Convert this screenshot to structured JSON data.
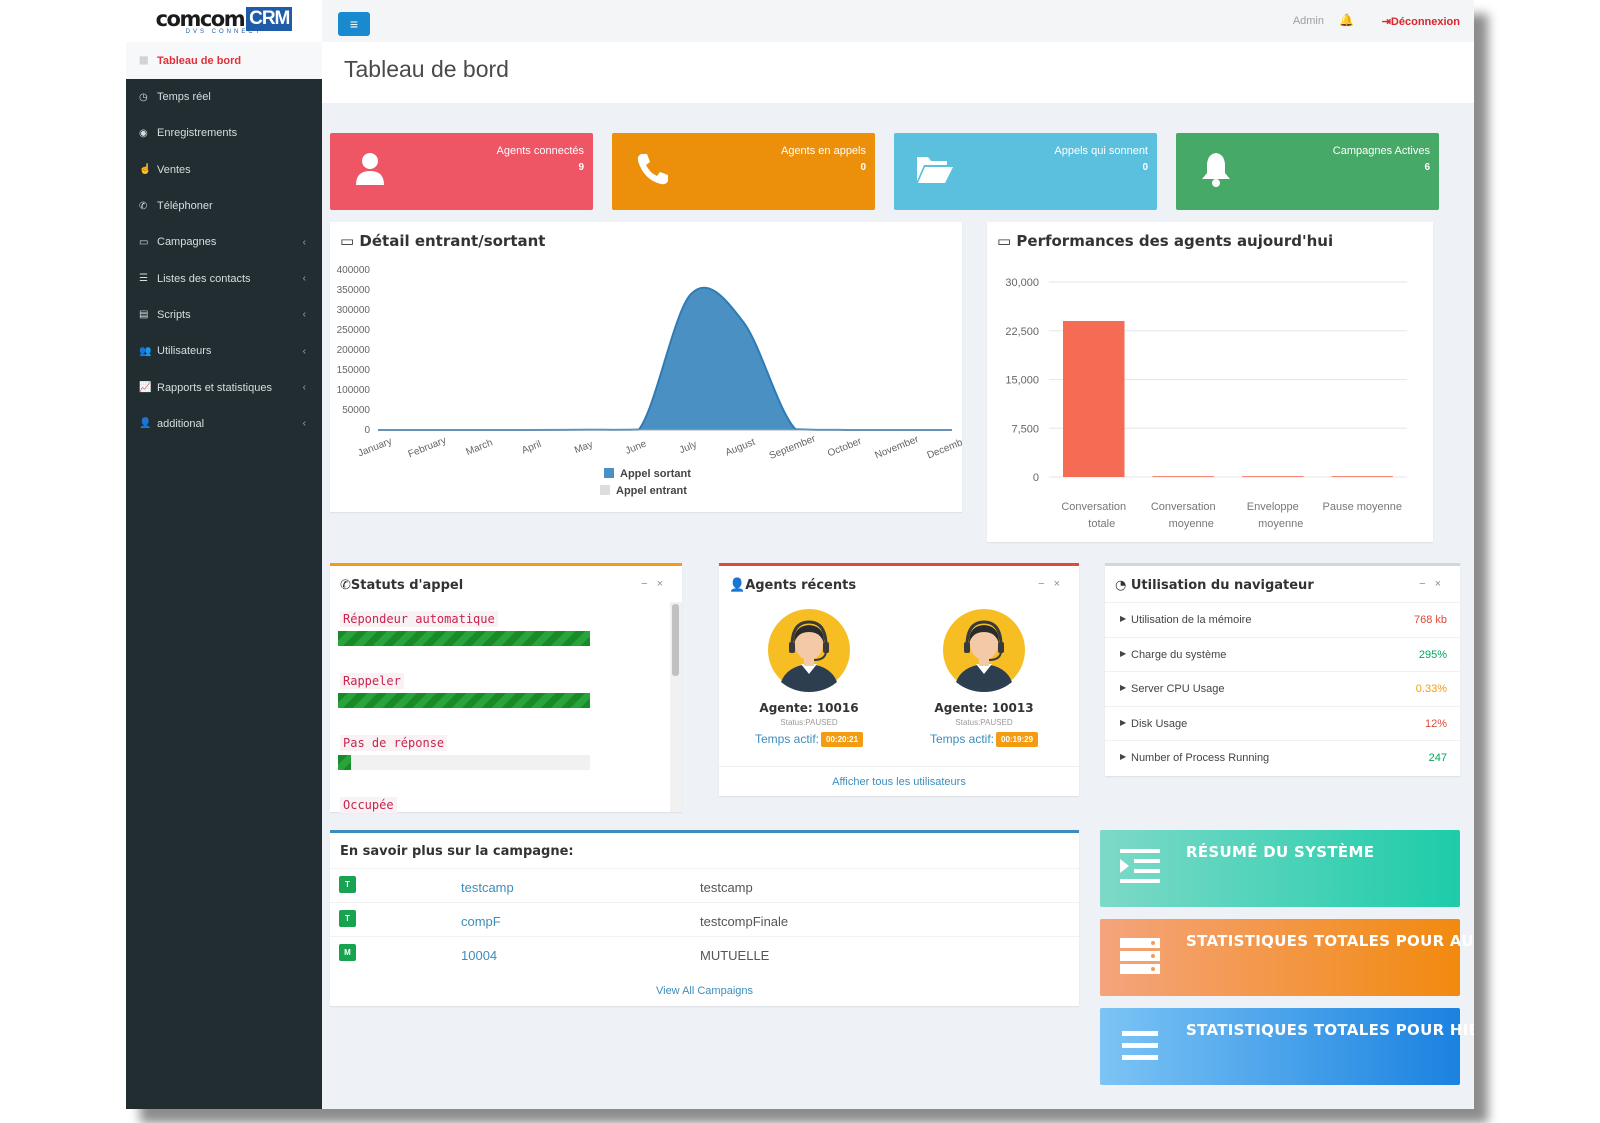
{
  "logo": {
    "main": "comcom",
    "crm": "CRM",
    "sub": "DVS CONNECT"
  },
  "sidebar": {
    "items": [
      {
        "label": "Tableau de bord",
        "icon": "dashboard-icon",
        "active": true,
        "chevron": false
      },
      {
        "label": "Temps réel",
        "icon": "clock-icon",
        "chevron": false
      },
      {
        "label": "Enregistrements",
        "icon": "record-icon",
        "chevron": false
      },
      {
        "label": "Ventes",
        "icon": "thumbs-up-icon",
        "chevron": false
      },
      {
        "label": "Téléphoner",
        "icon": "phone-icon",
        "chevron": false
      },
      {
        "label": "Campagnes",
        "icon": "folder-icon",
        "chevron": true
      },
      {
        "label": "Listes des contacts",
        "icon": "list-icon",
        "chevron": true
      },
      {
        "label": "Scripts",
        "icon": "file-icon",
        "chevron": true
      },
      {
        "label": "Utilisateurs",
        "icon": "users-icon",
        "chevron": true
      },
      {
        "label": "Rapports et statistiques",
        "icon": "line-chart-icon",
        "chevron": true
      },
      {
        "label": "additional",
        "icon": "user-icon",
        "chevron": true
      }
    ]
  },
  "topbar": {
    "admin": "Admin",
    "logout": "Déconnexion"
  },
  "page_title": "Tableau de bord",
  "info_boxes": [
    {
      "label": "Agents connectés",
      "value": "9",
      "color": "#ee5565",
      "icon": "user-icon"
    },
    {
      "label": "Agents en appels",
      "value": "0",
      "color": "#ec900b",
      "icon": "phone-icon"
    },
    {
      "label": "Appels qui sonnent",
      "value": "0",
      "color": "#5bc0de",
      "icon": "folder-open-icon"
    },
    {
      "label": "Campagnes Actives",
      "value": "6",
      "color": "#46a968",
      "icon": "bell-icon"
    }
  ],
  "inout_panel": {
    "title": "Détail entrant/sortant"
  },
  "perf_panel": {
    "title": "Performances des agents aujourd'hui"
  },
  "chart_data": [
    {
      "type": "area",
      "title": "Détail entrant/sortant",
      "categories": [
        "January",
        "February",
        "March",
        "April",
        "May",
        "June",
        "July",
        "August",
        "September",
        "October",
        "November",
        "December"
      ],
      "series": [
        {
          "name": "Appel sortant",
          "color": "#4a90c2",
          "values": [
            0,
            0,
            0,
            0,
            500,
            1000,
            340000,
            270000,
            2000,
            0,
            0,
            0
          ]
        },
        {
          "name": "Appel entrant",
          "color": "#dddddd",
          "values": [
            0,
            0,
            0,
            0,
            0,
            0,
            0,
            0,
            0,
            0,
            0,
            0
          ]
        }
      ],
      "ylim": [
        0,
        400000
      ],
      "yticks": [
        "400000",
        "350000",
        "300000",
        "250000",
        "200000",
        "150000",
        "100000",
        "50000",
        "0"
      ],
      "legend": "bottom"
    },
    {
      "type": "bar",
      "title": "Performances des agents aujourd'hui",
      "categories": [
        [
          "Conversation",
          "totale"
        ],
        [
          "Conversation",
          "moyenne"
        ],
        [
          "Enveloppe",
          "moyenne"
        ],
        [
          "Pause moyenne"
        ]
      ],
      "values": [
        24000,
        50,
        0,
        0
      ],
      "color": "#f56b54",
      "ylim": [
        0,
        30000
      ],
      "yticks": [
        "30,000",
        "22,500",
        "15,000",
        "7,500",
        "0"
      ],
      "grid": true
    }
  ],
  "call_status": {
    "title": "Statuts d'appel",
    "items": [
      {
        "label": "Répondeur automatique",
        "fill": 1.0
      },
      {
        "label": "Rappeler",
        "fill": 1.0
      },
      {
        "label": "Pas de réponse",
        "fill": 0.05
      },
      {
        "label": "Occupée",
        "fill": 0
      }
    ]
  },
  "recent_agents": {
    "title": "Agents récents",
    "agents": [
      {
        "name": "Agente: 10016",
        "status": "Status:PAUSED",
        "time_label": "Temps actif:",
        "time": "00:20:21"
      },
      {
        "name": "Agente: 10013",
        "status": "Status:PAUSED",
        "time_label": "Temps actif:",
        "time": "00:19:29"
      }
    ],
    "footer_link": "Afficher tous les utilisateurs"
  },
  "browser": {
    "title": "Utilisation du navigateur",
    "rows": [
      {
        "label": "Utilisation de la mémoire",
        "value": "768 kb",
        "color": "#dd4b39"
      },
      {
        "label": "Charge du système",
        "value": "295%",
        "color": "#00a65a"
      },
      {
        "label": "Server CPU Usage",
        "value": "0.33%",
        "color": "#f39c12"
      },
      {
        "label": "Disk Usage",
        "value": "12%",
        "color": "#dd4b39"
      },
      {
        "label": "Number of Process Running",
        "value": "247",
        "color": "#00a65a"
      }
    ]
  },
  "campaigns": {
    "title": "En savoir plus sur la campagne:",
    "rows": [
      {
        "badge": "T",
        "id": "testcamp",
        "name": "testcamp"
      },
      {
        "badge": "T",
        "id": "compF",
        "name": "testcompFinale"
      },
      {
        "badge": "M",
        "id": "10004",
        "name": "MUTUELLE"
      }
    ],
    "footer_link": "View All Campaigns"
  },
  "big_boxes": [
    {
      "label": "RÉSUMÉ DU SYSTÈME",
      "icon": "indent-icon"
    },
    {
      "label": "STATISTIQUES TOTALES POUR AU...",
      "icon": "server-icon"
    },
    {
      "label": "STATISTIQUES TOTALES POUR HIER",
      "icon": "menu-icon"
    }
  ]
}
